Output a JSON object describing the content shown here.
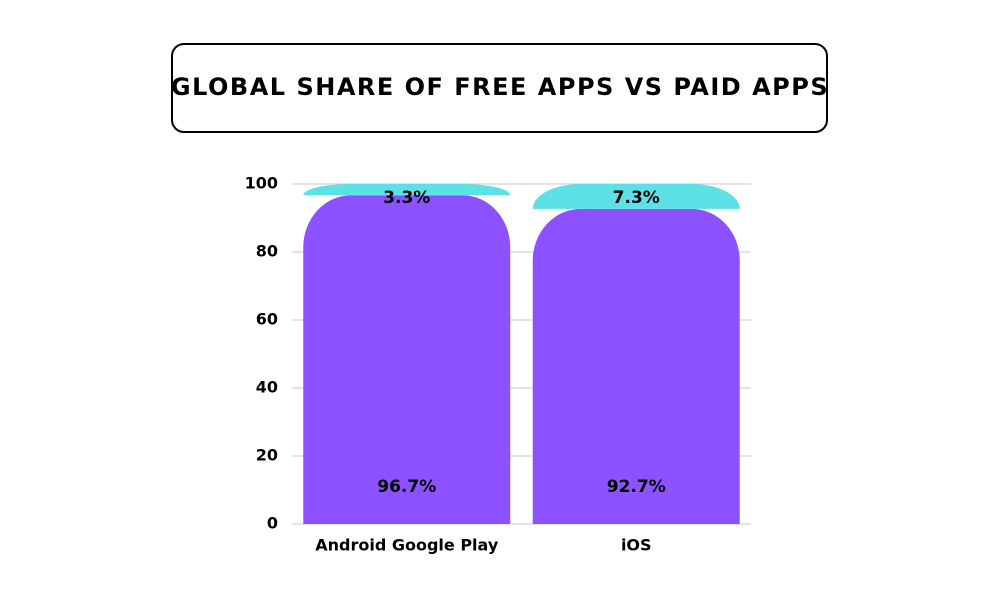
{
  "chart_data": {
    "type": "stacked_bar",
    "title": "GLOBAL SHARE OF FREE APPS VS PAID APPS",
    "categories": [
      "Android Google Play",
      "iOS"
    ],
    "series": [
      {
        "color": "#8c52ff",
        "values": [
          96.7,
          92.7
        ],
        "value_labels": [
          "96.7%",
          "92.7%"
        ]
      },
      {
        "color": "#5ce1e6",
        "values": [
          3.3,
          7.3
        ],
        "value_labels": [
          "3.3%",
          "7.3%"
        ]
      }
    ],
    "ylim": [
      0,
      100
    ],
    "yticks": [
      0,
      20,
      40,
      60,
      80,
      100
    ],
    "grid": true
  }
}
